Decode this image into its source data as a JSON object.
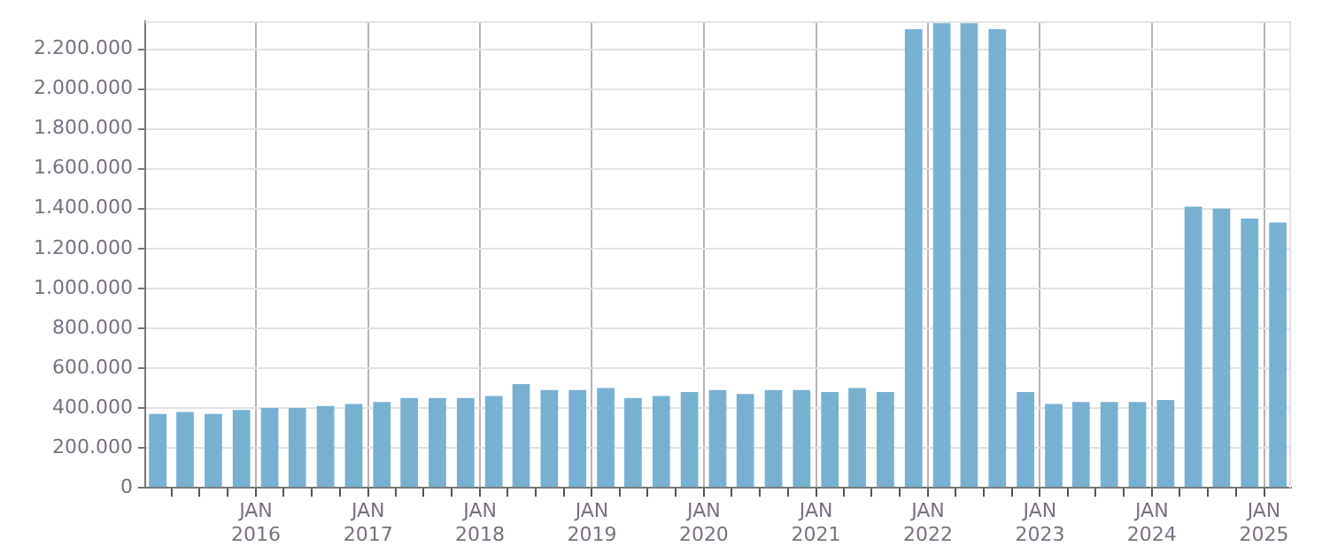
{
  "chart_data": {
    "type": "bar",
    "color": "#78b0d2",
    "grid": true,
    "x": [
      "2015-02-15",
      "2015-05-15",
      "2015-08-15",
      "2015-11-15",
      "2016-02-15",
      "2016-05-15",
      "2016-08-15",
      "2016-11-15",
      "2017-02-15",
      "2017-05-15",
      "2017-08-15",
      "2017-11-15",
      "2018-02-15",
      "2018-05-15",
      "2018-08-15",
      "2018-11-15",
      "2019-02-15",
      "2019-05-15",
      "2019-08-15",
      "2019-11-15",
      "2020-02-15",
      "2020-05-15",
      "2020-08-15",
      "2020-11-15",
      "2021-02-15",
      "2021-05-15",
      "2021-08-15",
      "2021-11-15",
      "2022-02-15",
      "2022-05-15",
      "2022-08-15",
      "2022-11-15",
      "2023-02-15",
      "2023-05-15",
      "2023-08-15",
      "2023-11-15",
      "2024-02-15",
      "2024-05-15",
      "2024-08-15",
      "2024-11-15",
      "2025-02-15"
    ],
    "values": [
      370000,
      380000,
      370000,
      390000,
      400000,
      400000,
      410000,
      420000,
      430000,
      450000,
      450000,
      450000,
      460000,
      520000,
      490000,
      490000,
      500000,
      450000,
      460000,
      480000,
      490000,
      470000,
      490000,
      490000,
      480000,
      500000,
      480000,
      2300000,
      2330000,
      2330000,
      2300000,
      480000,
      420000,
      430000,
      430000,
      430000,
      440000,
      1410000,
      1400000,
      1350000,
      1330000
    ],
    "xlim": [
      "2015-01-05",
      "2025-03-30"
    ],
    "xticks": [
      {
        "value": "2015-04-01",
        "label": null
      },
      {
        "value": "2015-07-01",
        "label": null
      },
      {
        "value": "2015-10-01",
        "label": null
      },
      {
        "value": "2016-01-01",
        "label": "JAN 2016"
      },
      {
        "value": "2016-04-01",
        "label": null
      },
      {
        "value": "2016-07-01",
        "label": null
      },
      {
        "value": "2016-10-01",
        "label": null
      },
      {
        "value": "2017-01-01",
        "label": "JAN 2017"
      },
      {
        "value": "2017-04-01",
        "label": null
      },
      {
        "value": "2017-07-01",
        "label": null
      },
      {
        "value": "2017-10-01",
        "label": null
      },
      {
        "value": "2018-01-01",
        "label": "JAN 2018"
      },
      {
        "value": "2018-04-01",
        "label": null
      },
      {
        "value": "2018-07-01",
        "label": null
      },
      {
        "value": "2018-10-01",
        "label": null
      },
      {
        "value": "2019-01-01",
        "label": "JAN 2019"
      },
      {
        "value": "2019-04-01",
        "label": null
      },
      {
        "value": "2019-07-01",
        "label": null
      },
      {
        "value": "2019-10-01",
        "label": null
      },
      {
        "value": "2020-01-01",
        "label": "JAN 2020"
      },
      {
        "value": "2020-04-01",
        "label": null
      },
      {
        "value": "2020-07-01",
        "label": null
      },
      {
        "value": "2020-10-01",
        "label": null
      },
      {
        "value": "2021-01-01",
        "label": "JAN 2021"
      },
      {
        "value": "2021-04-01",
        "label": null
      },
      {
        "value": "2021-07-01",
        "label": null
      },
      {
        "value": "2021-10-01",
        "label": null
      },
      {
        "value": "2022-01-01",
        "label": "JAN 2022"
      },
      {
        "value": "2022-04-01",
        "label": null
      },
      {
        "value": "2022-07-01",
        "label": null
      },
      {
        "value": "2022-10-01",
        "label": null
      },
      {
        "value": "2023-01-01",
        "label": "JAN 2023"
      },
      {
        "value": "2023-04-01",
        "label": null
      },
      {
        "value": "2023-07-01",
        "label": null
      },
      {
        "value": "2023-10-01",
        "label": null
      },
      {
        "value": "2024-01-01",
        "label": "JAN 2024"
      },
      {
        "value": "2024-04-01",
        "label": null
      },
      {
        "value": "2024-07-01",
        "label": null
      },
      {
        "value": "2024-10-01",
        "label": null
      },
      {
        "value": "2025-01-01",
        "label": "JAN 2025"
      }
    ],
    "ylim": [
      0,
      2340000
    ],
    "yticks": [
      {
        "value": 0,
        "label": "0"
      },
      {
        "value": 200000,
        "label": "200.000"
      },
      {
        "value": 400000,
        "label": "400.000"
      },
      {
        "value": 600000,
        "label": "600.000"
      },
      {
        "value": 800000,
        "label": "800.000"
      },
      {
        "value": 1000000,
        "label": "1.000.000"
      },
      {
        "value": 1200000,
        "label": "1.200.000"
      },
      {
        "value": 1400000,
        "label": "1.400.000"
      },
      {
        "value": 1600000,
        "label": "1.600.000"
      },
      {
        "value": 1800000,
        "label": "1.800.000"
      },
      {
        "value": 2000000,
        "label": "2.000.000"
      },
      {
        "value": 2200000,
        "label": "2.200.000"
      }
    ]
  }
}
